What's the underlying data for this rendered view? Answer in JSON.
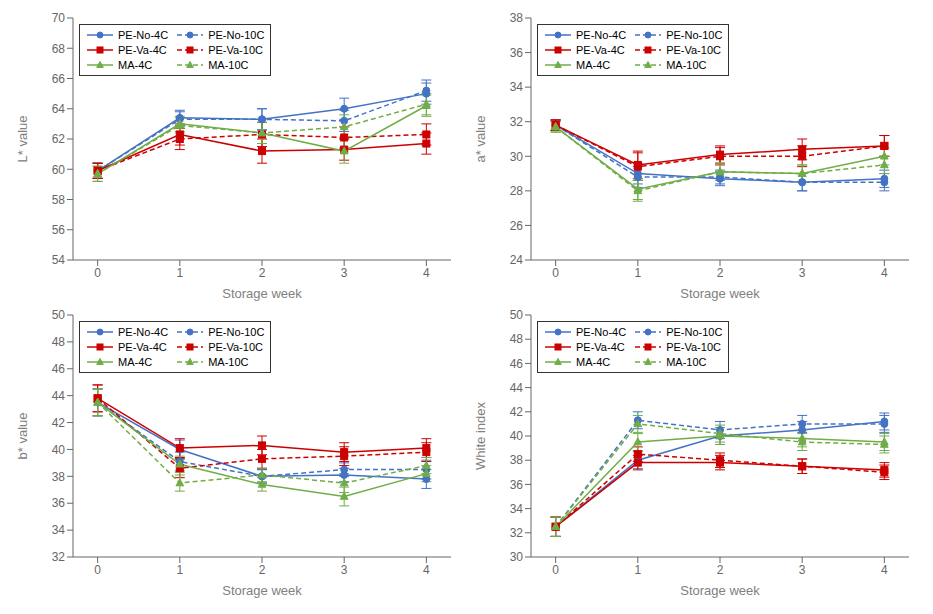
{
  "chart_data": [
    {
      "type": "line",
      "x_label": "Storage week",
      "y_label": "L* value",
      "x": [
        0,
        1,
        2,
        3,
        4
      ],
      "xlim": [
        -0.3,
        4.3
      ],
      "xticks": [
        0,
        1,
        2,
        3,
        4
      ],
      "ylim": [
        54,
        70
      ],
      "yticks": [
        54,
        56,
        58,
        60,
        62,
        64,
        66,
        68,
        70
      ],
      "legend": "upper left",
      "series": [
        {
          "name": "PE-No-4C",
          "color": "#4472C4",
          "line_style": "solid",
          "marker": "circle",
          "values": [
            59.9,
            63.4,
            63.3,
            64.0,
            65.0
          ],
          "errors": [
            0.5,
            0.5,
            0.7,
            0.7,
            0.7
          ]
        },
        {
          "name": "PE-No-10C",
          "color": "#4472C4",
          "line_style": "dashed",
          "marker": "circle",
          "values": [
            59.9,
            63.3,
            63.3,
            63.2,
            65.2
          ],
          "errors": [
            0.5,
            0.5,
            0.7,
            0.7,
            0.7
          ]
        },
        {
          "name": "PE-Va-4C",
          "color": "#CC0000",
          "line_style": "solid",
          "marker": "square",
          "values": [
            59.9,
            62.3,
            61.2,
            61.3,
            61.7
          ],
          "errors": [
            0.5,
            0.7,
            0.8,
            0.7,
            0.7
          ]
        },
        {
          "name": "PE-Va-10C",
          "color": "#CC0000",
          "line_style": "dashed",
          "marker": "square",
          "values": [
            59.9,
            62.0,
            62.3,
            62.1,
            62.3
          ],
          "errors": [
            0.5,
            0.7,
            0.8,
            0.7,
            0.7
          ]
        },
        {
          "name": "MA-4C",
          "color": "#70AD47",
          "line_style": "solid",
          "marker": "triangle",
          "values": [
            59.7,
            63.0,
            62.4,
            61.2,
            64.2
          ],
          "errors": [
            0.5,
            0.5,
            0.7,
            0.8,
            0.7
          ]
        },
        {
          "name": "MA-10C",
          "color": "#70AD47",
          "line_style": "dashed",
          "marker": "triangle",
          "values": [
            59.7,
            62.9,
            62.4,
            62.8,
            64.3
          ],
          "errors": [
            0.5,
            0.5,
            0.7,
            0.8,
            0.7
          ]
        }
      ]
    },
    {
      "type": "line",
      "x_label": "Storage week",
      "y_label": "a* value",
      "x": [
        0,
        1,
        2,
        3,
        4
      ],
      "xlim": [
        -0.3,
        4.3
      ],
      "xticks": [
        0,
        1,
        2,
        3,
        4
      ],
      "ylim": [
        24,
        38
      ],
      "yticks": [
        24,
        26,
        28,
        30,
        32,
        34,
        36,
        38
      ],
      "legend": "upper left",
      "series": [
        {
          "name": "PE-No-4C",
          "color": "#4472C4",
          "line_style": "solid",
          "marker": "circle",
          "values": [
            31.8,
            29.0,
            28.7,
            28.5,
            28.7
          ],
          "errors": [
            0.3,
            0.6,
            0.4,
            0.5,
            0.5
          ]
        },
        {
          "name": "PE-No-10C",
          "color": "#4472C4",
          "line_style": "dashed",
          "marker": "circle",
          "values": [
            31.8,
            28.8,
            28.8,
            28.5,
            28.5
          ],
          "errors": [
            0.3,
            0.6,
            0.4,
            0.5,
            0.5
          ]
        },
        {
          "name": "PE-Va-4C",
          "color": "#CC0000",
          "line_style": "solid",
          "marker": "square",
          "values": [
            31.8,
            29.5,
            30.1,
            30.4,
            30.6
          ],
          "errors": [
            0.3,
            0.8,
            0.5,
            0.6,
            0.6
          ]
        },
        {
          "name": "PE-Va-10C",
          "color": "#CC0000",
          "line_style": "dashed",
          "marker": "square",
          "values": [
            31.8,
            29.4,
            30.0,
            30.0,
            30.6
          ],
          "errors": [
            0.3,
            0.8,
            0.5,
            0.6,
            0.6
          ]
        },
        {
          "name": "MA-4C",
          "color": "#70AD47",
          "line_style": "solid",
          "marker": "triangle",
          "values": [
            31.7,
            28.1,
            29.1,
            29.0,
            30.0
          ],
          "errors": [
            0.3,
            0.6,
            0.5,
            0.5,
            0.5
          ]
        },
        {
          "name": "MA-10C",
          "color": "#70AD47",
          "line_style": "dashed",
          "marker": "triangle",
          "values": [
            31.7,
            28.0,
            29.1,
            29.0,
            29.5
          ],
          "errors": [
            0.3,
            0.6,
            0.5,
            0.5,
            0.5
          ]
        }
      ]
    },
    {
      "type": "line",
      "x_label": "Storage week",
      "y_label": "b* value",
      "x": [
        0,
        1,
        2,
        3,
        4
      ],
      "xlim": [
        -0.3,
        4.3
      ],
      "xticks": [
        0,
        1,
        2,
        3,
        4
      ],
      "ylim": [
        32,
        50
      ],
      "yticks": [
        32,
        34,
        36,
        38,
        40,
        42,
        44,
        46,
        48,
        50
      ],
      "legend": "upper left",
      "series": [
        {
          "name": "PE-No-4C",
          "color": "#4472C4",
          "line_style": "solid",
          "marker": "circle",
          "values": [
            43.5,
            40.0,
            38.0,
            38.1,
            37.8
          ],
          "errors": [
            1.0,
            0.7,
            0.5,
            0.5,
            0.7
          ]
        },
        {
          "name": "PE-No-10C",
          "color": "#4472C4",
          "line_style": "dashed",
          "marker": "circle",
          "values": [
            43.5,
            39.1,
            38.0,
            38.5,
            38.5
          ],
          "errors": [
            1.0,
            0.7,
            0.5,
            0.5,
            0.7
          ]
        },
        {
          "name": "PE-Va-4C",
          "color": "#CC0000",
          "line_style": "solid",
          "marker": "square",
          "values": [
            43.8,
            40.1,
            40.3,
            39.8,
            40.1
          ],
          "errors": [
            1.0,
            0.7,
            0.7,
            0.7,
            0.7
          ]
        },
        {
          "name": "PE-Va-10C",
          "color": "#CC0000",
          "line_style": "dashed",
          "marker": "square",
          "values": [
            43.8,
            38.6,
            39.3,
            39.5,
            39.8
          ],
          "errors": [
            1.0,
            0.7,
            0.7,
            0.7,
            0.7
          ]
        },
        {
          "name": "MA-4C",
          "color": "#70AD47",
          "line_style": "solid",
          "marker": "triangle",
          "values": [
            43.5,
            38.9,
            37.4,
            36.5,
            38.2
          ],
          "errors": [
            1.0,
            0.6,
            0.5,
            0.7,
            0.6
          ]
        },
        {
          "name": "MA-10C",
          "color": "#70AD47",
          "line_style": "dashed",
          "marker": "triangle",
          "values": [
            43.5,
            37.5,
            38.1,
            37.5,
            38.8
          ],
          "errors": [
            1.0,
            0.6,
            0.5,
            0.7,
            0.6
          ]
        }
      ]
    },
    {
      "type": "line",
      "x_label": "Storage week",
      "y_label": "White index",
      "x": [
        0,
        1,
        2,
        3,
        4
      ],
      "xlim": [
        -0.3,
        4.3
      ],
      "xticks": [
        0,
        1,
        2,
        3,
        4
      ],
      "ylim": [
        30,
        50
      ],
      "yticks": [
        30,
        32,
        34,
        36,
        38,
        40,
        42,
        44,
        46,
        48,
        50
      ],
      "legend": "upper left",
      "series": [
        {
          "name": "PE-No-4C",
          "color": "#4472C4",
          "line_style": "solid",
          "marker": "circle",
          "values": [
            32.5,
            38.0,
            40.0,
            40.5,
            41.2
          ],
          "errors": [
            0.8,
            0.7,
            0.7,
            0.7,
            0.7
          ]
        },
        {
          "name": "PE-No-10C",
          "color": "#4472C4",
          "line_style": "dashed",
          "marker": "circle",
          "values": [
            32.5,
            41.3,
            40.5,
            41.0,
            41.0
          ],
          "errors": [
            0.8,
            0.7,
            0.7,
            0.7,
            0.7
          ]
        },
        {
          "name": "PE-Va-4C",
          "color": "#CC0000",
          "line_style": "solid",
          "marker": "square",
          "values": [
            32.5,
            37.8,
            37.8,
            37.5,
            37.2
          ],
          "errors": [
            0.8,
            0.6,
            0.6,
            0.6,
            0.6
          ]
        },
        {
          "name": "PE-Va-10C",
          "color": "#CC0000",
          "line_style": "dashed",
          "marker": "square",
          "values": [
            32.5,
            38.5,
            38.0,
            37.5,
            37.0
          ],
          "errors": [
            0.8,
            0.6,
            0.6,
            0.6,
            0.6
          ]
        },
        {
          "name": "MA-4C",
          "color": "#70AD47",
          "line_style": "solid",
          "marker": "triangle",
          "values": [
            32.5,
            39.5,
            40.0,
            39.8,
            39.5
          ],
          "errors": [
            0.8,
            0.7,
            0.7,
            0.7,
            0.7
          ]
        },
        {
          "name": "MA-10C",
          "color": "#70AD47",
          "line_style": "dashed",
          "marker": "triangle",
          "values": [
            32.5,
            41.0,
            40.2,
            39.5,
            39.3
          ],
          "errors": [
            0.8,
            0.7,
            0.7,
            0.7,
            0.7
          ]
        }
      ]
    }
  ]
}
